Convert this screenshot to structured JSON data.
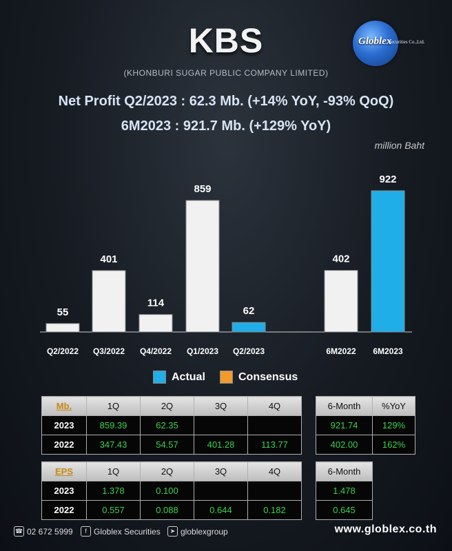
{
  "header": {
    "ticker": "KBS",
    "company": "(KHONBURI SUGAR PUBLIC COMPANY LIMITED)",
    "logo_text": "Globlex",
    "logo_sub": "Securities Co.,Ltd.",
    "headline1": "Net Profit  Q2/2023 : 62.3 Mb. (+14% YoY, -93% QoQ)",
    "headline2": "6M2023 : 921.7 Mb. (+129% YoY)"
  },
  "chart_data": {
    "type": "bar",
    "unit_label": "million Baht",
    "categories": [
      "Q2/2022",
      "Q3/2022",
      "Q4/2022",
      "Q1/2023",
      "Q2/2023",
      "6M2022",
      "6M2023"
    ],
    "values": [
      55,
      401,
      114,
      859,
      62,
      402,
      922
    ],
    "data_labels": [
      "55",
      "401",
      "114",
      "859",
      "62",
      "402",
      "922"
    ],
    "highlight": [
      "Q2/2023",
      "6M2023"
    ],
    "ylim": [
      0,
      1000
    ],
    "legend": [
      {
        "name": "Actual",
        "color": "#1faee8"
      },
      {
        "name": "Consensus",
        "color": "#f39a2e"
      }
    ],
    "bar_color": "#f1f1f1",
    "highlight_color": "#1faee8"
  },
  "table_mb": {
    "corner": "Mb.",
    "headers": [
      "1Q",
      "2Q",
      "3Q",
      "4Q"
    ],
    "rows": [
      {
        "label": "2023",
        "values": [
          "859.39",
          "62.35",
          "",
          ""
        ]
      },
      {
        "label": "2022",
        "values": [
          "347.43",
          "54.57",
          "401.28",
          "113.77"
        ]
      }
    ]
  },
  "table_mb_6m": {
    "headers": [
      "6-Month",
      "%YoY"
    ],
    "rows": [
      {
        "values": [
          "921.74",
          "129%"
        ]
      },
      {
        "values": [
          "402.00",
          "162%"
        ]
      }
    ]
  },
  "table_eps": {
    "corner": "EPS",
    "headers": [
      "1Q",
      "2Q",
      "3Q",
      "4Q"
    ],
    "rows": [
      {
        "label": "2023",
        "values": [
          "1.378",
          "0.100",
          "",
          ""
        ]
      },
      {
        "label": "2022",
        "values": [
          "0.557",
          "0.088",
          "0.644",
          "0.182"
        ]
      }
    ]
  },
  "table_eps_6m": {
    "headers": [
      "6-Month"
    ],
    "rows": [
      {
        "values": [
          "1.478"
        ]
      },
      {
        "values": [
          "0.645"
        ]
      }
    ]
  },
  "footer": {
    "phone": "02 672 5999",
    "facebook": "Globlex Securities",
    "telegram": "globlexgroup",
    "website": "www.globlex.co.th"
  }
}
